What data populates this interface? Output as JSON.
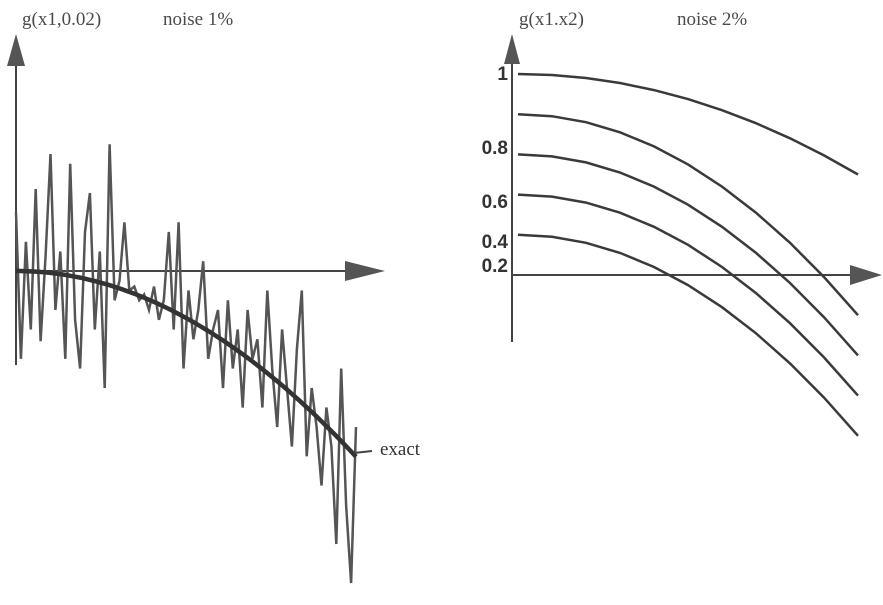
{
  "chart_data": [
    {
      "type": "line",
      "title": "g(x1,0.02)",
      "subtitle": "noise 1%",
      "annotation": "exact",
      "x": [
        0,
        1,
        2,
        3,
        4,
        5,
        6,
        7,
        8,
        9,
        10,
        11,
        12,
        13,
        14,
        15,
        16,
        17,
        18,
        19,
        20,
        21,
        22,
        23,
        24,
        25,
        26,
        27,
        28,
        29,
        30,
        31,
        32,
        33,
        34,
        35,
        36,
        37,
        38,
        39,
        40,
        41,
        42,
        43,
        44,
        45,
        46,
        47,
        48,
        49,
        50,
        51,
        52,
        53,
        54,
        55,
        56,
        57,
        58,
        59,
        60,
        61,
        62,
        63,
        64,
        65,
        66,
        67,
        68,
        69
      ],
      "series": [
        {
          "role": "exact",
          "values": [
            0.0,
            -0.002,
            -0.008,
            -0.018,
            -0.033,
            -0.051,
            -0.073,
            -0.099,
            -0.129,
            -0.164,
            -0.202,
            -0.244,
            -0.291,
            -0.341,
            -0.396,
            -0.455,
            -0.518,
            -0.584,
            -0.655,
            -0.73,
            -0.809,
            -0.892,
            -0.979,
            -1.07,
            -1.166,
            -1.265,
            -1.368,
            -1.475,
            -1.587,
            -1.702,
            -1.821,
            -1.944,
            -2.072,
            -2.203,
            -2.338,
            -2.477,
            -2.62,
            -2.767,
            -2.918,
            -3.073,
            -3.231,
            -3.394,
            -3.561,
            -3.731,
            -3.906,
            -4.084,
            -4.266,
            -4.452,
            -4.642,
            -4.836,
            -5.034,
            -5.236,
            -5.441,
            -5.65,
            -5.864,
            -6.081,
            -6.302,
            -6.526,
            -6.755,
            -6.988,
            -7.224,
            -7.464,
            -7.708,
            -7.956,
            -8.208,
            -8.464,
            -8.724,
            -8.987,
            -9.254,
            -9.525
          ]
        },
        {
          "role": "noisy",
          "values": [
            3.0,
            -4.5,
            1.5,
            -3.0,
            4.2,
            -3.6,
            0.8,
            6.0,
            -2.0,
            1.0,
            -4.5,
            5.5,
            -2.5,
            -5.0,
            2.0,
            4.0,
            -3.0,
            1.0,
            -6.0,
            6.5,
            -1.5,
            -0.5,
            2.5,
            -1.0,
            -0.8,
            -1.5,
            -1.2,
            -2.0,
            -0.8,
            -2.5,
            -1.5,
            2.0,
            -3.0,
            2.5,
            -5.0,
            -1.0,
            -3.5,
            -2.0,
            0.5,
            -4.5,
            -3.0,
            -2.0,
            -6.0,
            -1.5,
            -5.0,
            -3.0,
            -7.0,
            -2.0,
            -4.5,
            -3.5,
            -7.0,
            -1.0,
            -5.0,
            -8.0,
            -3.0,
            -6.0,
            -9.0,
            -4.0,
            -1.0,
            -9.5,
            -6.0,
            -8.0,
            -11.0,
            -7.0,
            -9.0,
            -14.0,
            -5.0,
            -12.0,
            -16.0,
            -8.0
          ]
        }
      ],
      "xlim": [
        0,
        69
      ],
      "ylim": [
        -16,
        10
      ],
      "grid": false
    },
    {
      "type": "line",
      "title": "g(x1.x2)",
      "subtitle": "noise 2%",
      "categories": [
        "1",
        "0.8",
        "0.6",
        "0.4",
        "0.2"
      ],
      "x": [
        0,
        0.1,
        0.2,
        0.3,
        0.4,
        0.5,
        0.6,
        0.7,
        0.8,
        0.9,
        1.0
      ],
      "series": [
        {
          "values": [
            1.0,
            0.995,
            0.98,
            0.955,
            0.92,
            0.875,
            0.82,
            0.755,
            0.68,
            0.595,
            0.5
          ]
        },
        {
          "values": [
            0.8,
            0.79,
            0.76,
            0.71,
            0.64,
            0.55,
            0.44,
            0.31,
            0.16,
            -0.01,
            -0.2
          ]
        },
        {
          "values": [
            0.6,
            0.59,
            0.56,
            0.51,
            0.44,
            0.35,
            0.24,
            0.11,
            -0.04,
            -0.21,
            -0.4
          ]
        },
        {
          "values": [
            0.4,
            0.39,
            0.36,
            0.31,
            0.24,
            0.15,
            0.04,
            -0.09,
            -0.24,
            -0.41,
            -0.6
          ]
        },
        {
          "values": [
            0.2,
            0.19,
            0.16,
            0.11,
            0.04,
            -0.05,
            -0.16,
            -0.29,
            -0.44,
            -0.61,
            -0.8
          ]
        }
      ],
      "xlim": [
        0,
        1
      ],
      "ylim": [
        -0.8,
        1.0
      ],
      "grid": false
    }
  ]
}
